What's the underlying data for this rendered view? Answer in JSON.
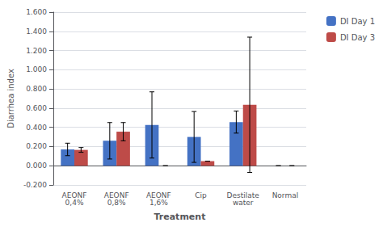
{
  "chart_data": {
    "type": "bar",
    "categories": [
      "AEONF\n0,4%",
      "AEONF\n0,8%",
      "AEONF\n1,6%",
      "Cip",
      "Destilate\nwater",
      "Normal"
    ],
    "series": [
      {
        "name": "DI Day 1",
        "color": "#4472C4",
        "values": [
          0.17,
          0.26,
          0.425,
          0.3,
          0.455,
          0.0
        ],
        "errors": [
          0.065,
          0.19,
          0.345,
          0.265,
          0.115,
          0.0
        ]
      },
      {
        "name": "DI Day 3",
        "color": "#BE4B48",
        "values": [
          0.165,
          0.355,
          0.0,
          0.048,
          0.635,
          0.0
        ],
        "errors": [
          0.025,
          0.095,
          0.0,
          0.0,
          0.705,
          0.0
        ]
      }
    ],
    "xlabel": "Treatment",
    "ylabel": "Diarrhea index",
    "ylim": [
      -0.2,
      1.601
    ],
    "yticks": [
      {
        "value": -0.2,
        "label": "-0.200"
      },
      {
        "value": 0,
        "label": "0.000"
      },
      {
        "value": 0.2,
        "label": "0.200"
      },
      {
        "value": 0.4,
        "label": "0.400"
      },
      {
        "value": 0.6,
        "label": "0.600"
      },
      {
        "value": 0.8,
        "label": "0.800"
      },
      {
        "value": 1.0,
        "label": "1.000"
      },
      {
        "value": 1.2,
        "label": "1.200"
      },
      {
        "value": 1.4,
        "label": "1.400"
      },
      {
        "value": 1.6,
        "label": "1.600"
      }
    ],
    "grid": true,
    "legend": "right"
  }
}
